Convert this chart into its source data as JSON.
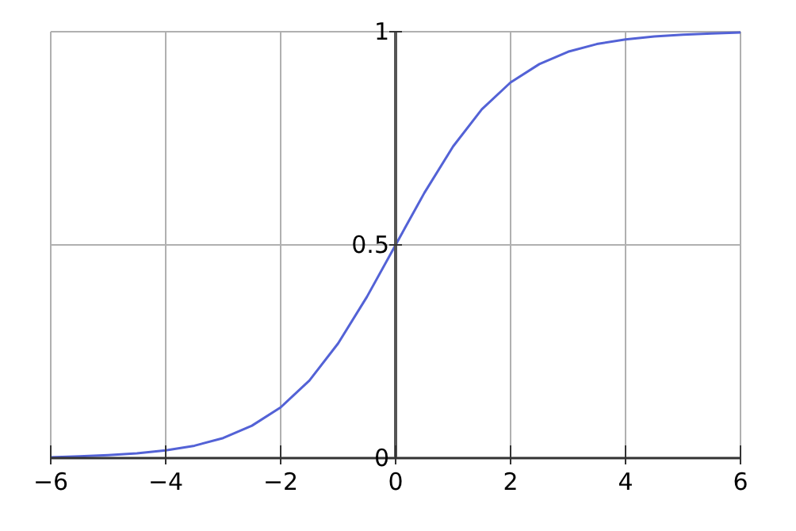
{
  "chart_data": {
    "type": "line",
    "x": [
      -6,
      -5.5,
      -5,
      -4.5,
      -4,
      -3.5,
      -3,
      -2.5,
      -2,
      -1.5,
      -1,
      -0.5,
      0,
      0.5,
      1,
      1.5,
      2,
      2.5,
      3,
      3.5,
      4,
      4.5,
      5,
      5.5,
      6
    ],
    "series": [
      {
        "color": "#5362d6",
        "values": [
          0.002,
          0.004,
          0.007,
          0.011,
          0.018,
          0.029,
          0.047,
          0.076,
          0.119,
          0.182,
          0.269,
          0.378,
          0.5,
          0.622,
          0.731,
          0.818,
          0.881,
          0.924,
          0.953,
          0.971,
          0.982,
          0.989,
          0.993,
          0.996,
          0.998
        ]
      }
    ],
    "xlim": [
      -6,
      6
    ],
    "ylim": [
      0,
      1
    ],
    "xticks": [
      {
        "value": -6,
        "label": "−6"
      },
      {
        "value": -4,
        "label": "−4"
      },
      {
        "value": -2,
        "label": "−2"
      },
      0,
      2,
      4,
      6
    ],
    "yticks": [
      0,
      0.5,
      1
    ],
    "grid": true,
    "marker": "none",
    "line_style": "solid"
  }
}
